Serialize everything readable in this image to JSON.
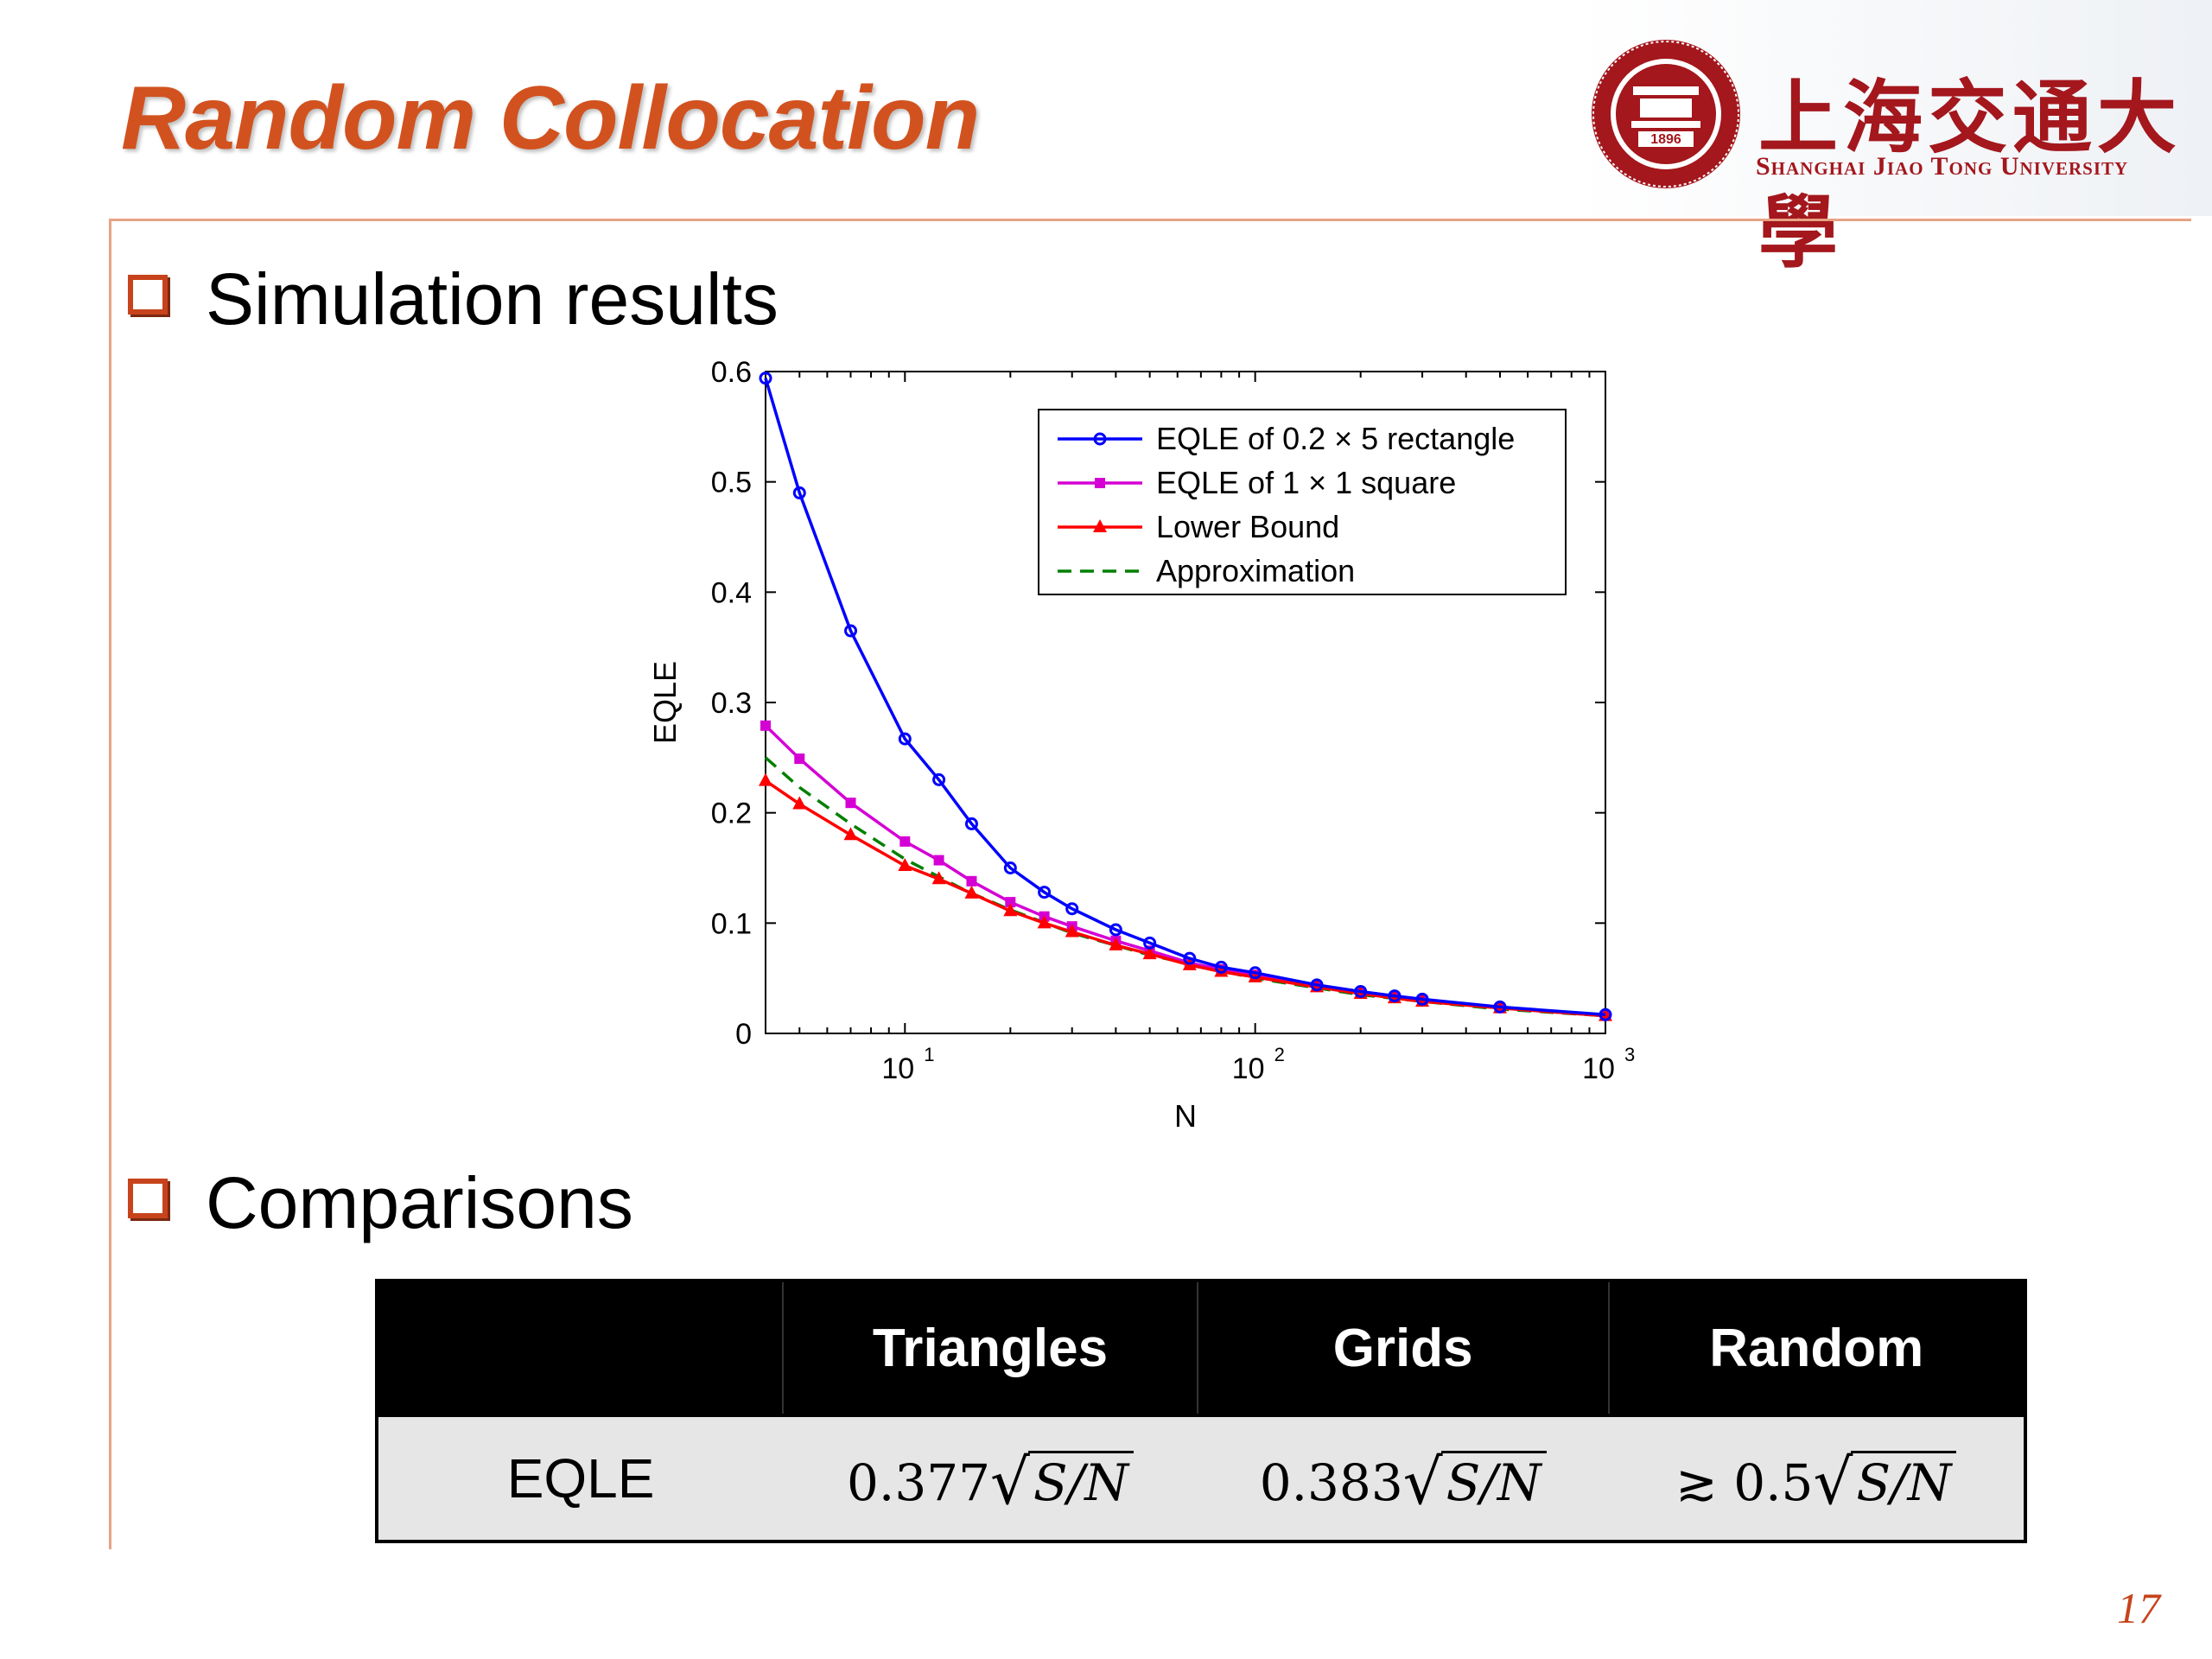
{
  "slide": {
    "title": "Random Collocation",
    "page_number": "17",
    "logo": {
      "chinese_name": "上海交通大學",
      "english_name": "Shanghai Jiao Tong University",
      "seal_year": "1896"
    },
    "bullets": [
      "Simulation results",
      "Comparisons"
    ]
  },
  "chart_data": {
    "type": "line",
    "xlabel": "N",
    "ylabel": "EQLE",
    "xscale": "log",
    "xlim": [
      4,
      1000
    ],
    "ylim": [
      0,
      0.6
    ],
    "yticks": [
      "0",
      "0.1",
      "0.2",
      "0.3",
      "0.4",
      "0.5",
      "0.6"
    ],
    "xticks": [
      {
        "value": 10,
        "base": "10",
        "exp": "1"
      },
      {
        "value": 100,
        "base": "10",
        "exp": "2"
      },
      {
        "value": 1000,
        "base": "10",
        "exp": "3"
      }
    ],
    "legend_position": "top-right",
    "series": [
      {
        "name": "EQLE of 0.2 × 5 rectangle",
        "color": "#0000ff",
        "marker": "circle",
        "dash": "solid",
        "x": [
          4,
          5,
          7,
          10,
          12.5,
          15.5,
          20,
          25,
          30,
          40,
          50,
          65,
          80,
          100,
          150,
          200,
          250,
          300,
          500,
          1000
        ],
        "y": [
          0.594,
          0.49,
          0.365,
          0.267,
          0.23,
          0.19,
          0.15,
          0.128,
          0.113,
          0.094,
          0.082,
          0.068,
          0.06,
          0.055,
          0.044,
          0.038,
          0.034,
          0.031,
          0.024,
          0.017
        ]
      },
      {
        "name": "EQLE of 1 × 1 square",
        "color": "#d400d4",
        "marker": "square",
        "dash": "solid",
        "x": [
          4,
          5,
          7,
          10,
          12.5,
          15.5,
          20,
          25,
          30,
          40,
          50,
          65,
          80,
          100,
          150,
          200,
          250,
          300,
          500,
          1000
        ],
        "y": [
          0.279,
          0.249,
          0.209,
          0.174,
          0.157,
          0.138,
          0.119,
          0.106,
          0.097,
          0.084,
          0.075,
          0.064,
          0.058,
          0.053,
          0.043,
          0.037,
          0.033,
          0.03,
          0.023,
          0.016
        ]
      },
      {
        "name": "Lower Bound",
        "color": "#ff0000",
        "marker": "triangle",
        "dash": "solid",
        "x": [
          4,
          5,
          7,
          10,
          12.5,
          15.5,
          20,
          25,
          30,
          40,
          50,
          65,
          80,
          100,
          150,
          200,
          250,
          300,
          500,
          1000
        ],
        "y": [
          0.229,
          0.208,
          0.18,
          0.152,
          0.14,
          0.127,
          0.111,
          0.1,
          0.092,
          0.08,
          0.072,
          0.062,
          0.056,
          0.051,
          0.042,
          0.036,
          0.032,
          0.029,
          0.023,
          0.016
        ]
      },
      {
        "name": "Approximation",
        "color": "#008000",
        "marker": "none",
        "dash": "dashed",
        "x": [
          4,
          5,
          7,
          10,
          15,
          20,
          30,
          50,
          100,
          200,
          300,
          500,
          1000
        ],
        "y": [
          0.25,
          0.223,
          0.19,
          0.158,
          0.129,
          0.112,
          0.091,
          0.071,
          0.05,
          0.035,
          0.029,
          0.022,
          0.016
        ]
      }
    ]
  },
  "table": {
    "headers": [
      "",
      "Triangles",
      "Grids",
      "Random"
    ],
    "row_label": "EQLE",
    "cells": [
      {
        "prefix": "",
        "coef": "0.377",
        "radicand": "S/N"
      },
      {
        "prefix": "",
        "coef": "0.383",
        "radicand": "S/N"
      },
      {
        "prefix": "≳ ",
        "coef": "0.5",
        "radicand": "S/N"
      }
    ]
  }
}
